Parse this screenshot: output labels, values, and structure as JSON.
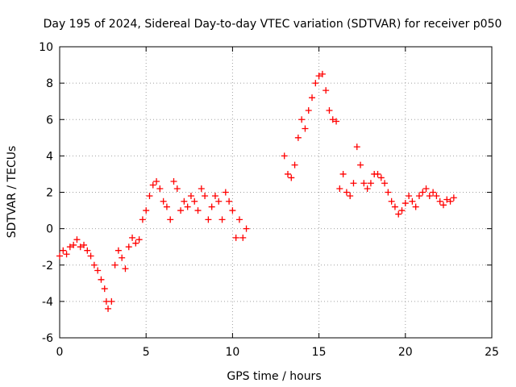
{
  "chart_data": {
    "type": "scatter",
    "title": "Day 195 of 2024, Sidereal Day-to-day VTEC variation (SDTVAR) for receiver p050",
    "xlabel": "GPS time / hours",
    "ylabel": "SDTVAR / TECUs",
    "xlim": [
      0,
      25
    ],
    "ylim": [
      -6,
      10
    ],
    "xticks": [
      0,
      5,
      10,
      15,
      20,
      25
    ],
    "yticks": [
      -6,
      -4,
      -2,
      0,
      2,
      4,
      6,
      8,
      10
    ],
    "xtick_labels": [
      "0",
      "5",
      "10",
      "15",
      "20",
      "25"
    ],
    "ytick_labels": [
      "-6",
      "-4",
      "-2",
      "0",
      "2",
      "4",
      "6",
      "8",
      "10"
    ],
    "grid": true,
    "marker": "+",
    "marker_color": "#ff0000",
    "series": [
      {
        "name": "SDTVAR",
        "x": [
          0.0,
          0.2,
          0.4,
          0.6,
          0.8,
          1.0,
          1.2,
          1.4,
          1.6,
          1.8,
          2.0,
          2.2,
          2.4,
          2.6,
          2.7,
          2.8,
          3.0,
          3.2,
          3.4,
          3.6,
          3.8,
          4.0,
          4.2,
          4.4,
          4.6,
          4.8,
          5.0,
          5.2,
          5.4,
          5.6,
          5.8,
          6.0,
          6.2,
          6.4,
          6.6,
          6.8,
          7.0,
          7.2,
          7.4,
          7.6,
          7.8,
          8.0,
          8.2,
          8.4,
          8.6,
          8.8,
          9.0,
          9.2,
          9.4,
          9.6,
          9.8,
          10.0,
          10.2,
          10.4,
          10.6,
          10.8,
          13.0,
          13.2,
          13.4,
          13.6,
          13.8,
          14.0,
          14.2,
          14.4,
          14.6,
          14.8,
          15.0,
          15.2,
          15.4,
          15.6,
          15.8,
          16.0,
          16.2,
          16.4,
          16.6,
          16.8,
          17.0,
          17.2,
          17.4,
          17.6,
          17.8,
          18.0,
          18.2,
          18.4,
          18.6,
          18.8,
          19.0,
          19.2,
          19.4,
          19.6,
          19.8,
          20.0,
          20.2,
          20.4,
          20.6,
          20.8,
          21.0,
          21.2,
          21.4,
          21.6,
          21.8,
          22.0,
          22.2,
          22.4,
          22.6,
          22.8
        ],
        "y": [
          -1.5,
          -1.2,
          -1.4,
          -1.0,
          -0.9,
          -0.6,
          -1.0,
          -0.9,
          -1.2,
          -1.5,
          -2.0,
          -2.3,
          -2.8,
          -3.3,
          -4.0,
          -4.4,
          -4.0,
          -2.0,
          -1.2,
          -1.6,
          -2.2,
          -1.0,
          -0.5,
          -0.8,
          -0.6,
          0.5,
          1.0,
          1.8,
          2.4,
          2.6,
          2.2,
          1.5,
          1.2,
          0.5,
          2.6,
          2.2,
          1.0,
          1.5,
          1.2,
          1.8,
          1.5,
          1.0,
          2.2,
          1.8,
          0.5,
          1.2,
          1.8,
          1.5,
          0.5,
          2.0,
          1.5,
          1.0,
          -0.5,
          0.5,
          -0.5,
          0.0,
          4.0,
          3.0,
          2.8,
          3.5,
          5.0,
          6.0,
          5.5,
          6.5,
          7.2,
          8.0,
          8.4,
          8.5,
          7.6,
          6.5,
          6.0,
          5.9,
          2.2,
          3.0,
          2.0,
          1.8,
          2.5,
          4.5,
          3.5,
          2.5,
          2.2,
          2.5,
          3.0,
          3.0,
          2.8,
          2.5,
          2.0,
          1.5,
          1.2,
          0.8,
          1.0,
          1.4,
          1.8,
          1.5,
          1.2,
          1.8,
          2.0,
          2.2,
          1.8,
          2.0,
          1.8,
          1.5,
          1.3,
          1.6,
          1.5,
          1.7
        ]
      }
    ]
  }
}
